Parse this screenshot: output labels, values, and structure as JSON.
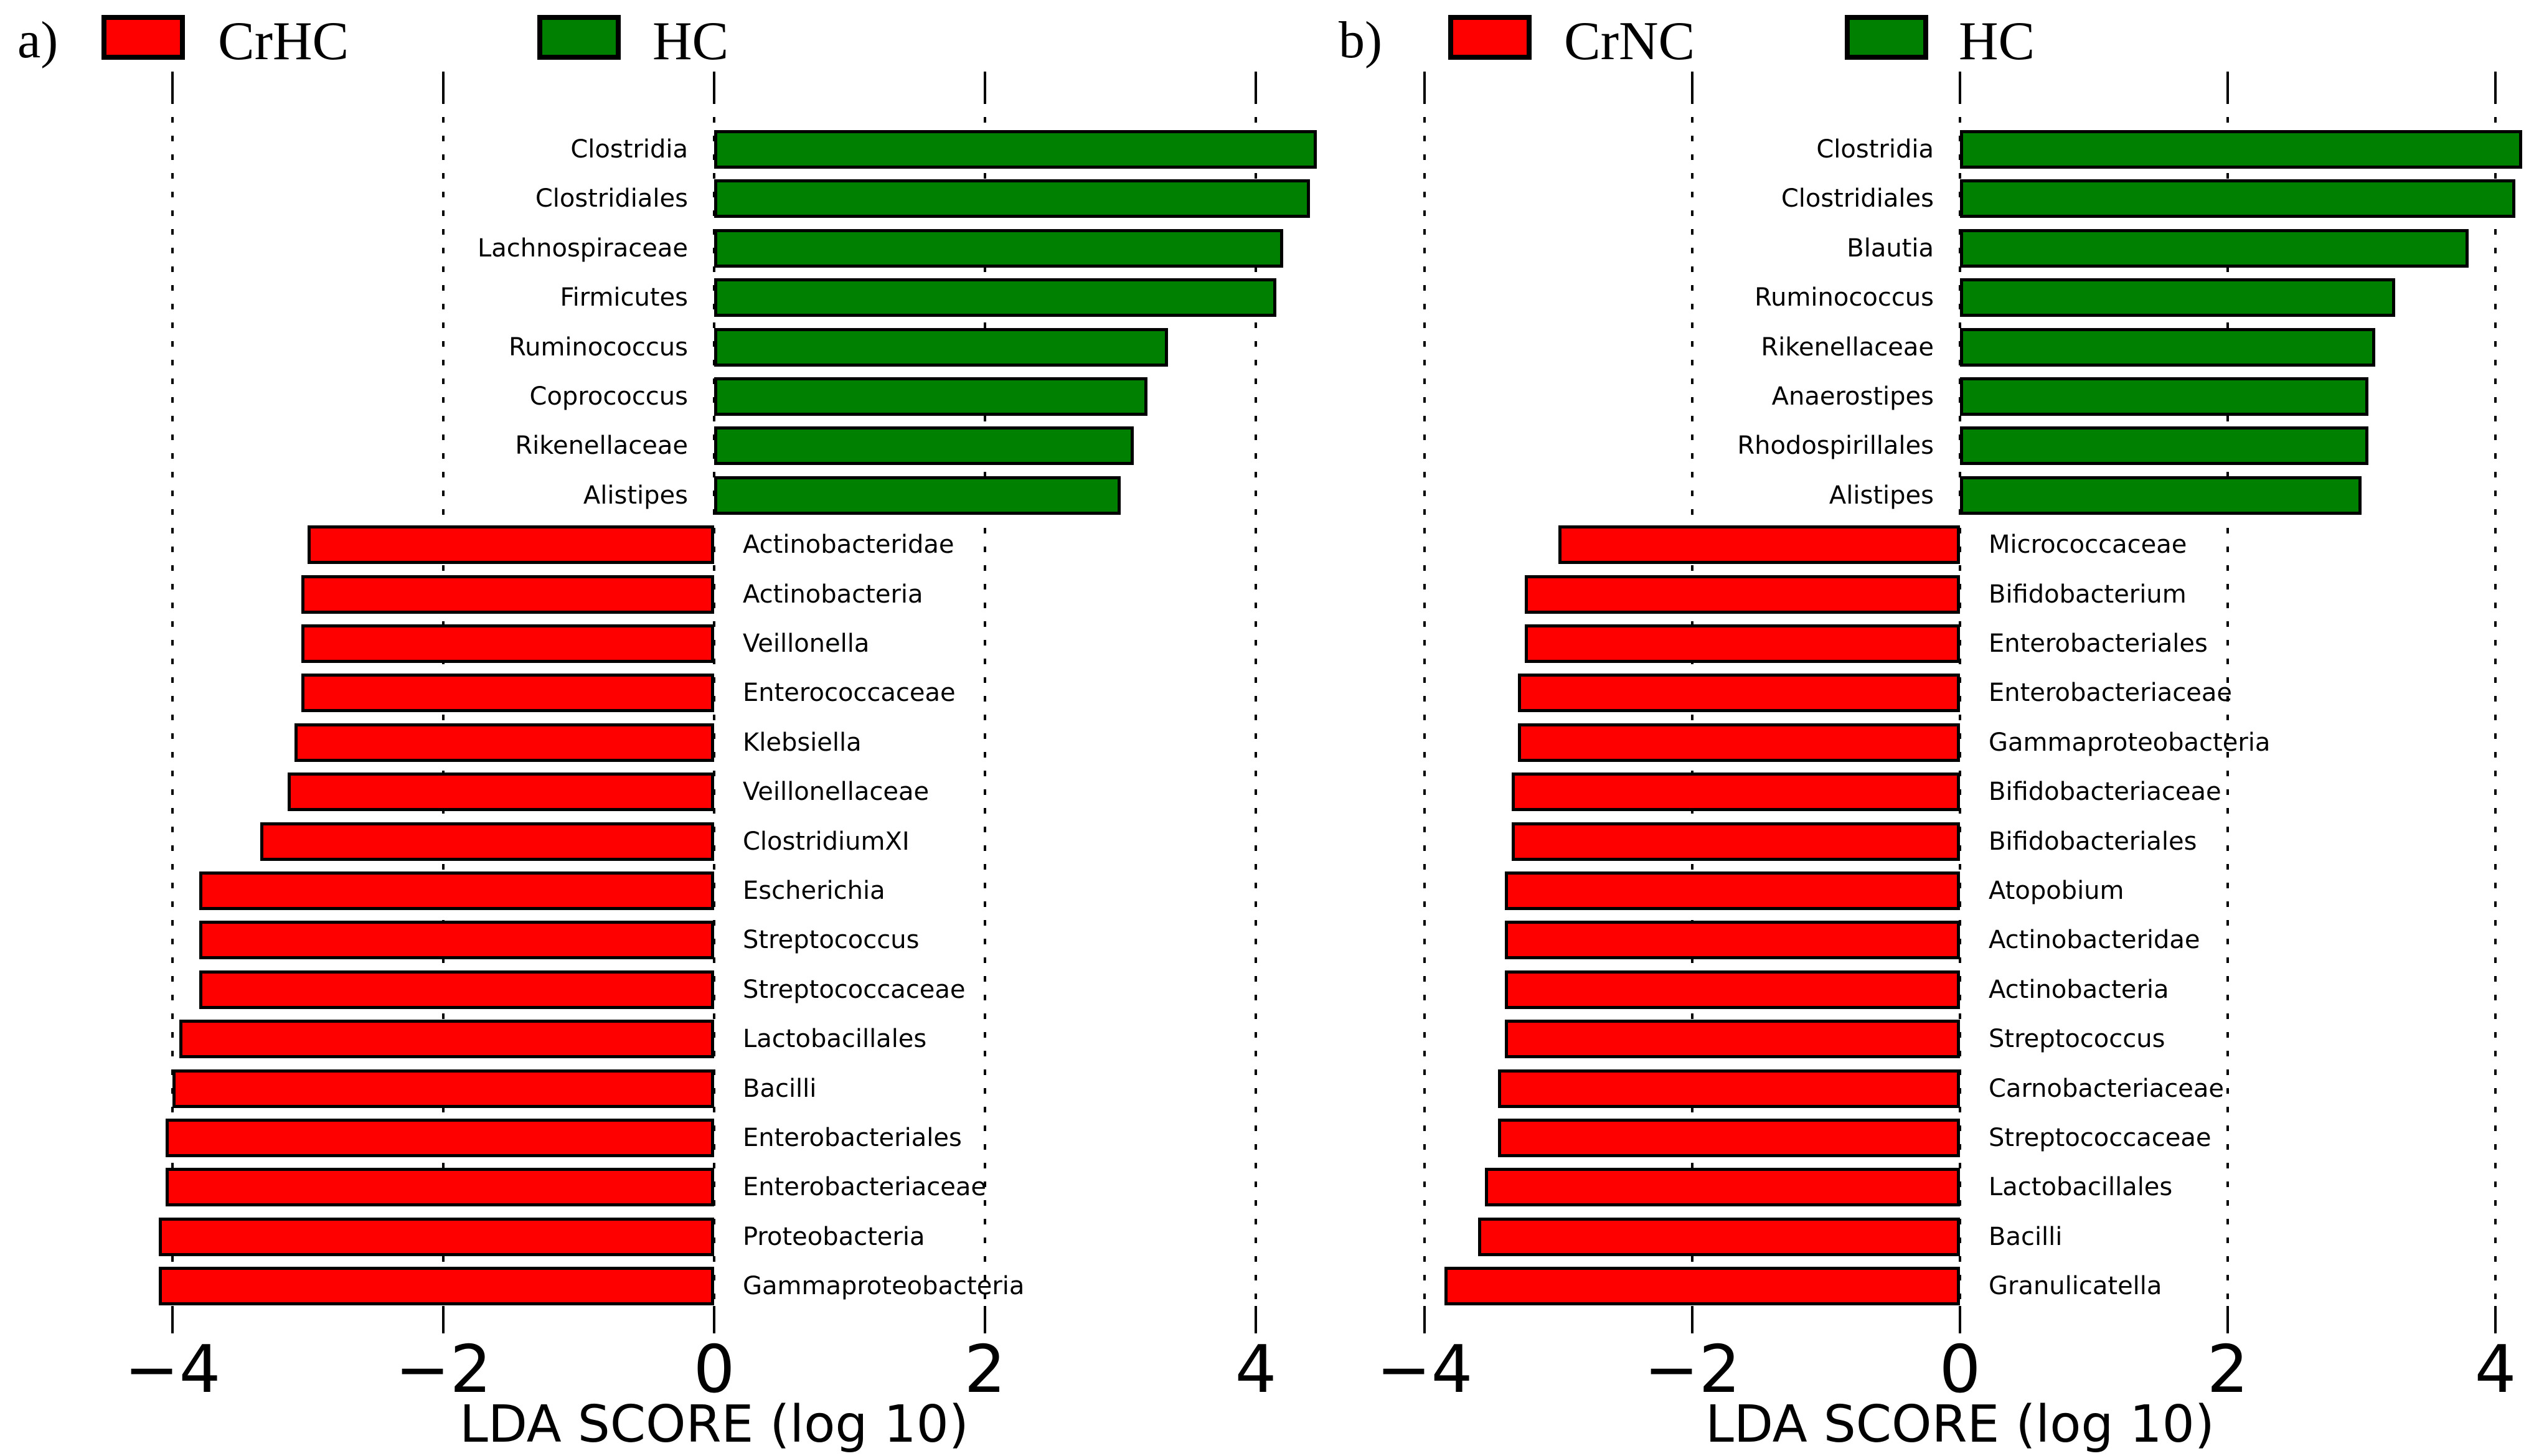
{
  "chart_data": [
    {
      "type": "bar",
      "orientation": "horizontal",
      "panel_label": "a)",
      "legend": [
        {
          "name": "CrHC",
          "color": "#ff0000"
        },
        {
          "name": "HC",
          "color": "#008000"
        }
      ],
      "xlabel": "LDA SCORE (log 10)",
      "xlim": [
        -4.8,
        4.8
      ],
      "xticks": [
        -4,
        -2,
        0,
        2,
        4
      ],
      "xtick_labels": [
        "−4",
        "−2",
        "0",
        "2",
        "4"
      ],
      "grid": "dashed-vertical",
      "bars": [
        {
          "taxon": "Clostridia",
          "group": "HC",
          "lda": 4.45
        },
        {
          "taxon": "Clostridiales",
          "group": "HC",
          "lda": 4.4
        },
        {
          "taxon": "Lachnospiraceae",
          "group": "HC",
          "lda": 4.2
        },
        {
          "taxon": "Firmicutes",
          "group": "HC",
          "lda": 4.15
        },
        {
          "taxon": "Ruminococcus",
          "group": "HC",
          "lda": 3.35
        },
        {
          "taxon": "Coprococcus",
          "group": "HC",
          "lda": 3.2
        },
        {
          "taxon": "Rikenellaceae",
          "group": "HC",
          "lda": 3.1
        },
        {
          "taxon": "Alistipes",
          "group": "HC",
          "lda": 3.0
        },
        {
          "taxon": "Actinobacteridae",
          "group": "CrHC",
          "lda": -3.0
        },
        {
          "taxon": "Actinobacteria",
          "group": "CrHC",
          "lda": -3.05
        },
        {
          "taxon": "Veillonella",
          "group": "CrHC",
          "lda": -3.05
        },
        {
          "taxon": "Enterococcaceae",
          "group": "CrHC",
          "lda": -3.05
        },
        {
          "taxon": "Klebsiella",
          "group": "CrHC",
          "lda": -3.1
        },
        {
          "taxon": "Veillonellaceae",
          "group": "CrHC",
          "lda": -3.15
        },
        {
          "taxon": "ClostridiumXI",
          "group": "CrHC",
          "lda": -3.35
        },
        {
          "taxon": "Escherichia",
          "group": "CrHC",
          "lda": -3.8
        },
        {
          "taxon": "Streptococcus",
          "group": "CrHC",
          "lda": -3.8
        },
        {
          "taxon": "Streptococcaceae",
          "group": "CrHC",
          "lda": -3.8
        },
        {
          "taxon": "Lactobacillales",
          "group": "CrHC",
          "lda": -3.95
        },
        {
          "taxon": "Bacilli",
          "group": "CrHC",
          "lda": -4.0
        },
        {
          "taxon": "Enterobacteriales",
          "group": "CrHC",
          "lda": -4.05
        },
        {
          "taxon": "Enterobacteriaceae",
          "group": "CrHC",
          "lda": -4.05
        },
        {
          "taxon": "Proteobacteria",
          "group": "CrHC",
          "lda": -4.1
        },
        {
          "taxon": "Gammaproteobacteria",
          "group": "CrHC",
          "lda": -4.1
        }
      ]
    },
    {
      "type": "bar",
      "orientation": "horizontal",
      "panel_label": "b)",
      "legend": [
        {
          "name": "CrNC",
          "color": "#ff0000"
        },
        {
          "name": "HC",
          "color": "#008000"
        }
      ],
      "xlabel": "LDA SCORE (log 10)",
      "xlim": [
        -4.8,
        4.8
      ],
      "xticks": [
        -4,
        -2,
        0,
        2,
        4
      ],
      "xtick_labels": [
        "−4",
        "−2",
        "0",
        "2",
        "4"
      ],
      "grid": "dashed-vertical",
      "bars": [
        {
          "taxon": "Clostridia",
          "group": "HC",
          "lda": 4.2
        },
        {
          "taxon": "Clostridiales",
          "group": "HC",
          "lda": 4.15
        },
        {
          "taxon": "Blautia",
          "group": "HC",
          "lda": 3.8
        },
        {
          "taxon": "Ruminococcus",
          "group": "HC",
          "lda": 3.25
        },
        {
          "taxon": "Rikenellaceae",
          "group": "HC",
          "lda": 3.1
        },
        {
          "taxon": "Anaerostipes",
          "group": "HC",
          "lda": 3.05
        },
        {
          "taxon": "Rhodospirillales",
          "group": "HC",
          "lda": 3.05
        },
        {
          "taxon": "Alistipes",
          "group": "HC",
          "lda": 3.0
        },
        {
          "taxon": "Micrococcaceae",
          "group": "CrNC",
          "lda": -3.0
        },
        {
          "taxon": "Bifidobacterium",
          "group": "CrNC",
          "lda": -3.25
        },
        {
          "taxon": "Enterobacteriales",
          "group": "CrNC",
          "lda": -3.25
        },
        {
          "taxon": "Enterobacteriaceae",
          "group": "CrNC",
          "lda": -3.3
        },
        {
          "taxon": "Gammaproteobacteria",
          "group": "CrNC",
          "lda": -3.3
        },
        {
          "taxon": "Bifidobacteriaceae",
          "group": "CrNC",
          "lda": -3.35
        },
        {
          "taxon": "Bifidobacteriales",
          "group": "CrNC",
          "lda": -3.35
        },
        {
          "taxon": "Atopobium",
          "group": "CrNC",
          "lda": -3.4
        },
        {
          "taxon": "Actinobacteridae",
          "group": "CrNC",
          "lda": -3.4
        },
        {
          "taxon": "Actinobacteria",
          "group": "CrNC",
          "lda": -3.4
        },
        {
          "taxon": "Streptococcus",
          "group": "CrNC",
          "lda": -3.4
        },
        {
          "taxon": "Carnobacteriaceae",
          "group": "CrNC",
          "lda": -3.45
        },
        {
          "taxon": "Streptococcaceae",
          "group": "CrNC",
          "lda": -3.45
        },
        {
          "taxon": "Lactobacillales",
          "group": "CrNC",
          "lda": -3.55
        },
        {
          "taxon": "Bacilli",
          "group": "CrNC",
          "lda": -3.6
        },
        {
          "taxon": "Granulicatella",
          "group": "CrNC",
          "lda": -3.85
        }
      ]
    }
  ]
}
